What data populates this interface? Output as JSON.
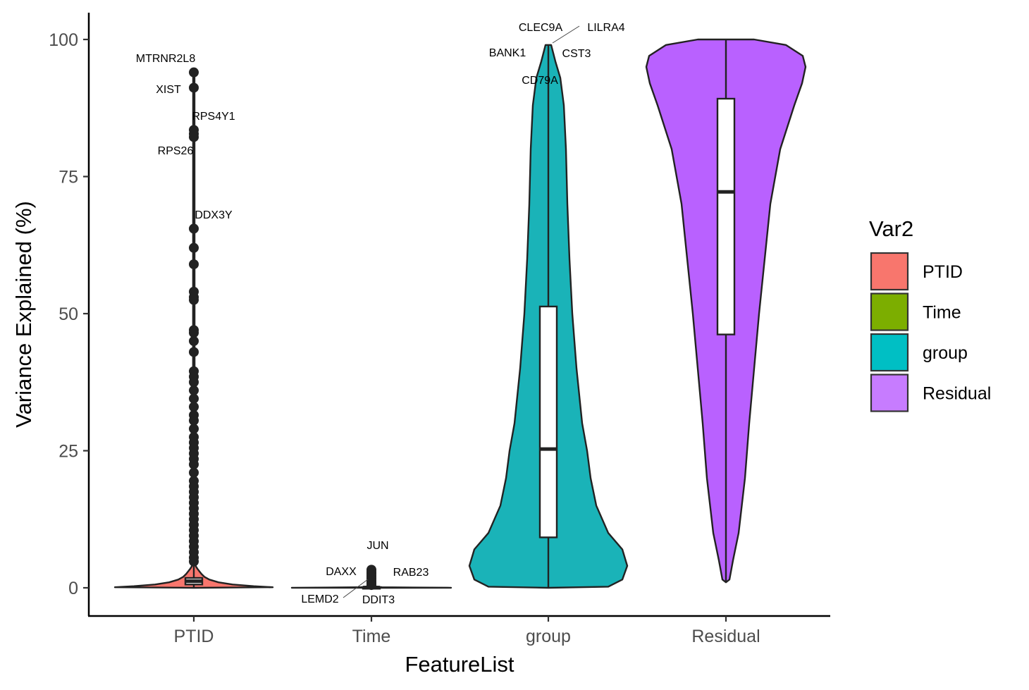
{
  "chart_data": {
    "type": "violin",
    "xlabel": "FeatureList",
    "ylabel": "Variance Explained (%)",
    "categories": [
      "PTID",
      "Time",
      "group",
      "Residual"
    ],
    "ylim": [
      -5,
      105
    ],
    "yticks": [
      0,
      25,
      50,
      75,
      100
    ],
    "grid": false,
    "legend": {
      "title": "Var2",
      "position": "right",
      "entries": [
        {
          "name": "PTID",
          "color": "#F8766D"
        },
        {
          "name": "Time",
          "color": "#7CAE00"
        },
        {
          "name": "group",
          "color": "#00BFC4"
        },
        {
          "name": "Residual",
          "color": "#C77CFF"
        }
      ]
    },
    "colors": {
      "PTID": "#F8766D",
      "Time": "#7CAE00",
      "group": "#1AB3B8",
      "Residual": "#B961FF"
    },
    "series": [
      {
        "name": "PTID",
        "box": {
          "q1": 0.6,
          "median": 1.2,
          "q3": 1.8,
          "whisker_low": 0,
          "whisker_high": 4
        },
        "outliers": [
          94,
          91.2,
          83.5,
          82.8,
          82.2,
          65.5,
          62,
          59,
          54,
          53,
          52.5,
          47,
          46.5,
          45,
          43,
          39.5,
          38.5,
          37.5,
          36,
          34.5,
          33,
          31.5,
          30.5,
          29,
          27.5,
          26.5,
          25.5,
          24.5,
          23.5,
          22.5,
          21,
          19.5,
          18.5,
          17.5,
          16.5,
          15.5,
          14.5,
          13.5,
          12.5,
          11.5,
          10.5,
          9.5,
          8.5,
          7.5,
          6.5,
          5.5,
          4.8
        ],
        "labels": [
          {
            "text": "MTRNR2L8",
            "y": 94
          },
          {
            "text": "XIST",
            "y": 91.2
          },
          {
            "text": "RPS4Y1",
            "y": 83.5
          },
          {
            "text": "RPS26",
            "y": 82.2
          },
          {
            "text": "DDX3Y",
            "y": 65.5
          }
        ]
      },
      {
        "name": "Time",
        "box": {
          "q1": 0,
          "median": 0.05,
          "q3": 0.1,
          "whisker_low": 0,
          "whisker_high": 0.3
        },
        "outliers": [
          3.3,
          2.9,
          2.6,
          2.3,
          2.0,
          1.7,
          1.4,
          1.1,
          0.8,
          0.5
        ],
        "labels": [
          {
            "text": "JUN",
            "y": 3.3
          },
          {
            "text": "DAXX",
            "y": 2.6
          },
          {
            "text": "RAB23",
            "y": 2.0
          },
          {
            "text": "LEMD2",
            "y": 1.1
          },
          {
            "text": "DDIT3",
            "y": 0.5
          }
        ]
      },
      {
        "name": "group",
        "box": {
          "q1": 9.2,
          "median": 25.3,
          "q3": 51.3,
          "whisker_low": 0,
          "whisker_high": 99
        },
        "labels": [
          {
            "text": "CLEC9A",
            "y": 99
          },
          {
            "text": "LILRA4",
            "y": 99
          },
          {
            "text": "BANK1",
            "y": 99
          },
          {
            "text": "CST3",
            "y": 99
          },
          {
            "text": "CD79A",
            "y": 99
          }
        ]
      },
      {
        "name": "Residual",
        "box": {
          "q1": 46.2,
          "median": 72.2,
          "q3": 89.2,
          "whisker_low": 1,
          "whisker_high": 100
        },
        "labels": []
      }
    ]
  }
}
